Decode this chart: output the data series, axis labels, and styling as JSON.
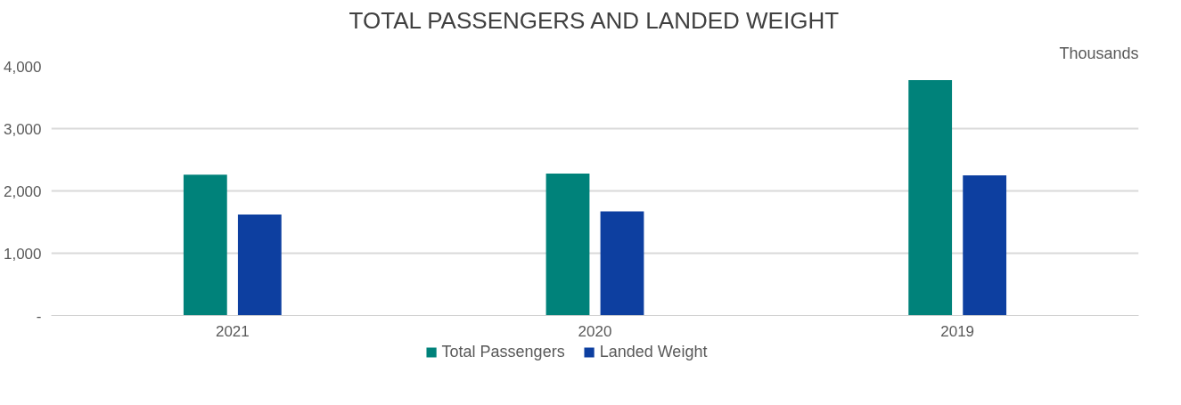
{
  "chart_data": {
    "type": "bar",
    "title": "TOTAL PASSENGERS AND LANDED WEIGHT",
    "ylabel": "Thousands",
    "categories": [
      "2021",
      "2020",
      "2019"
    ],
    "series": [
      {
        "name": "Total Passengers",
        "color": "#00827a",
        "values": [
          2260,
          2280,
          3780
        ]
      },
      {
        "name": "Landed Weight",
        "color": "#0d3fa0",
        "values": [
          1620,
          1670,
          2250
        ]
      }
    ],
    "ylim": [
      0,
      4000
    ],
    "yticks": [
      {
        "value": 0,
        "label": "-"
      },
      {
        "value": 1000,
        "label": "1,000"
      },
      {
        "value": 2000,
        "label": "2,000"
      },
      {
        "value": 3000,
        "label": "3,000"
      },
      {
        "value": 4000,
        "label": "4,000"
      }
    ],
    "grid": "y",
    "legend": "bottom"
  }
}
